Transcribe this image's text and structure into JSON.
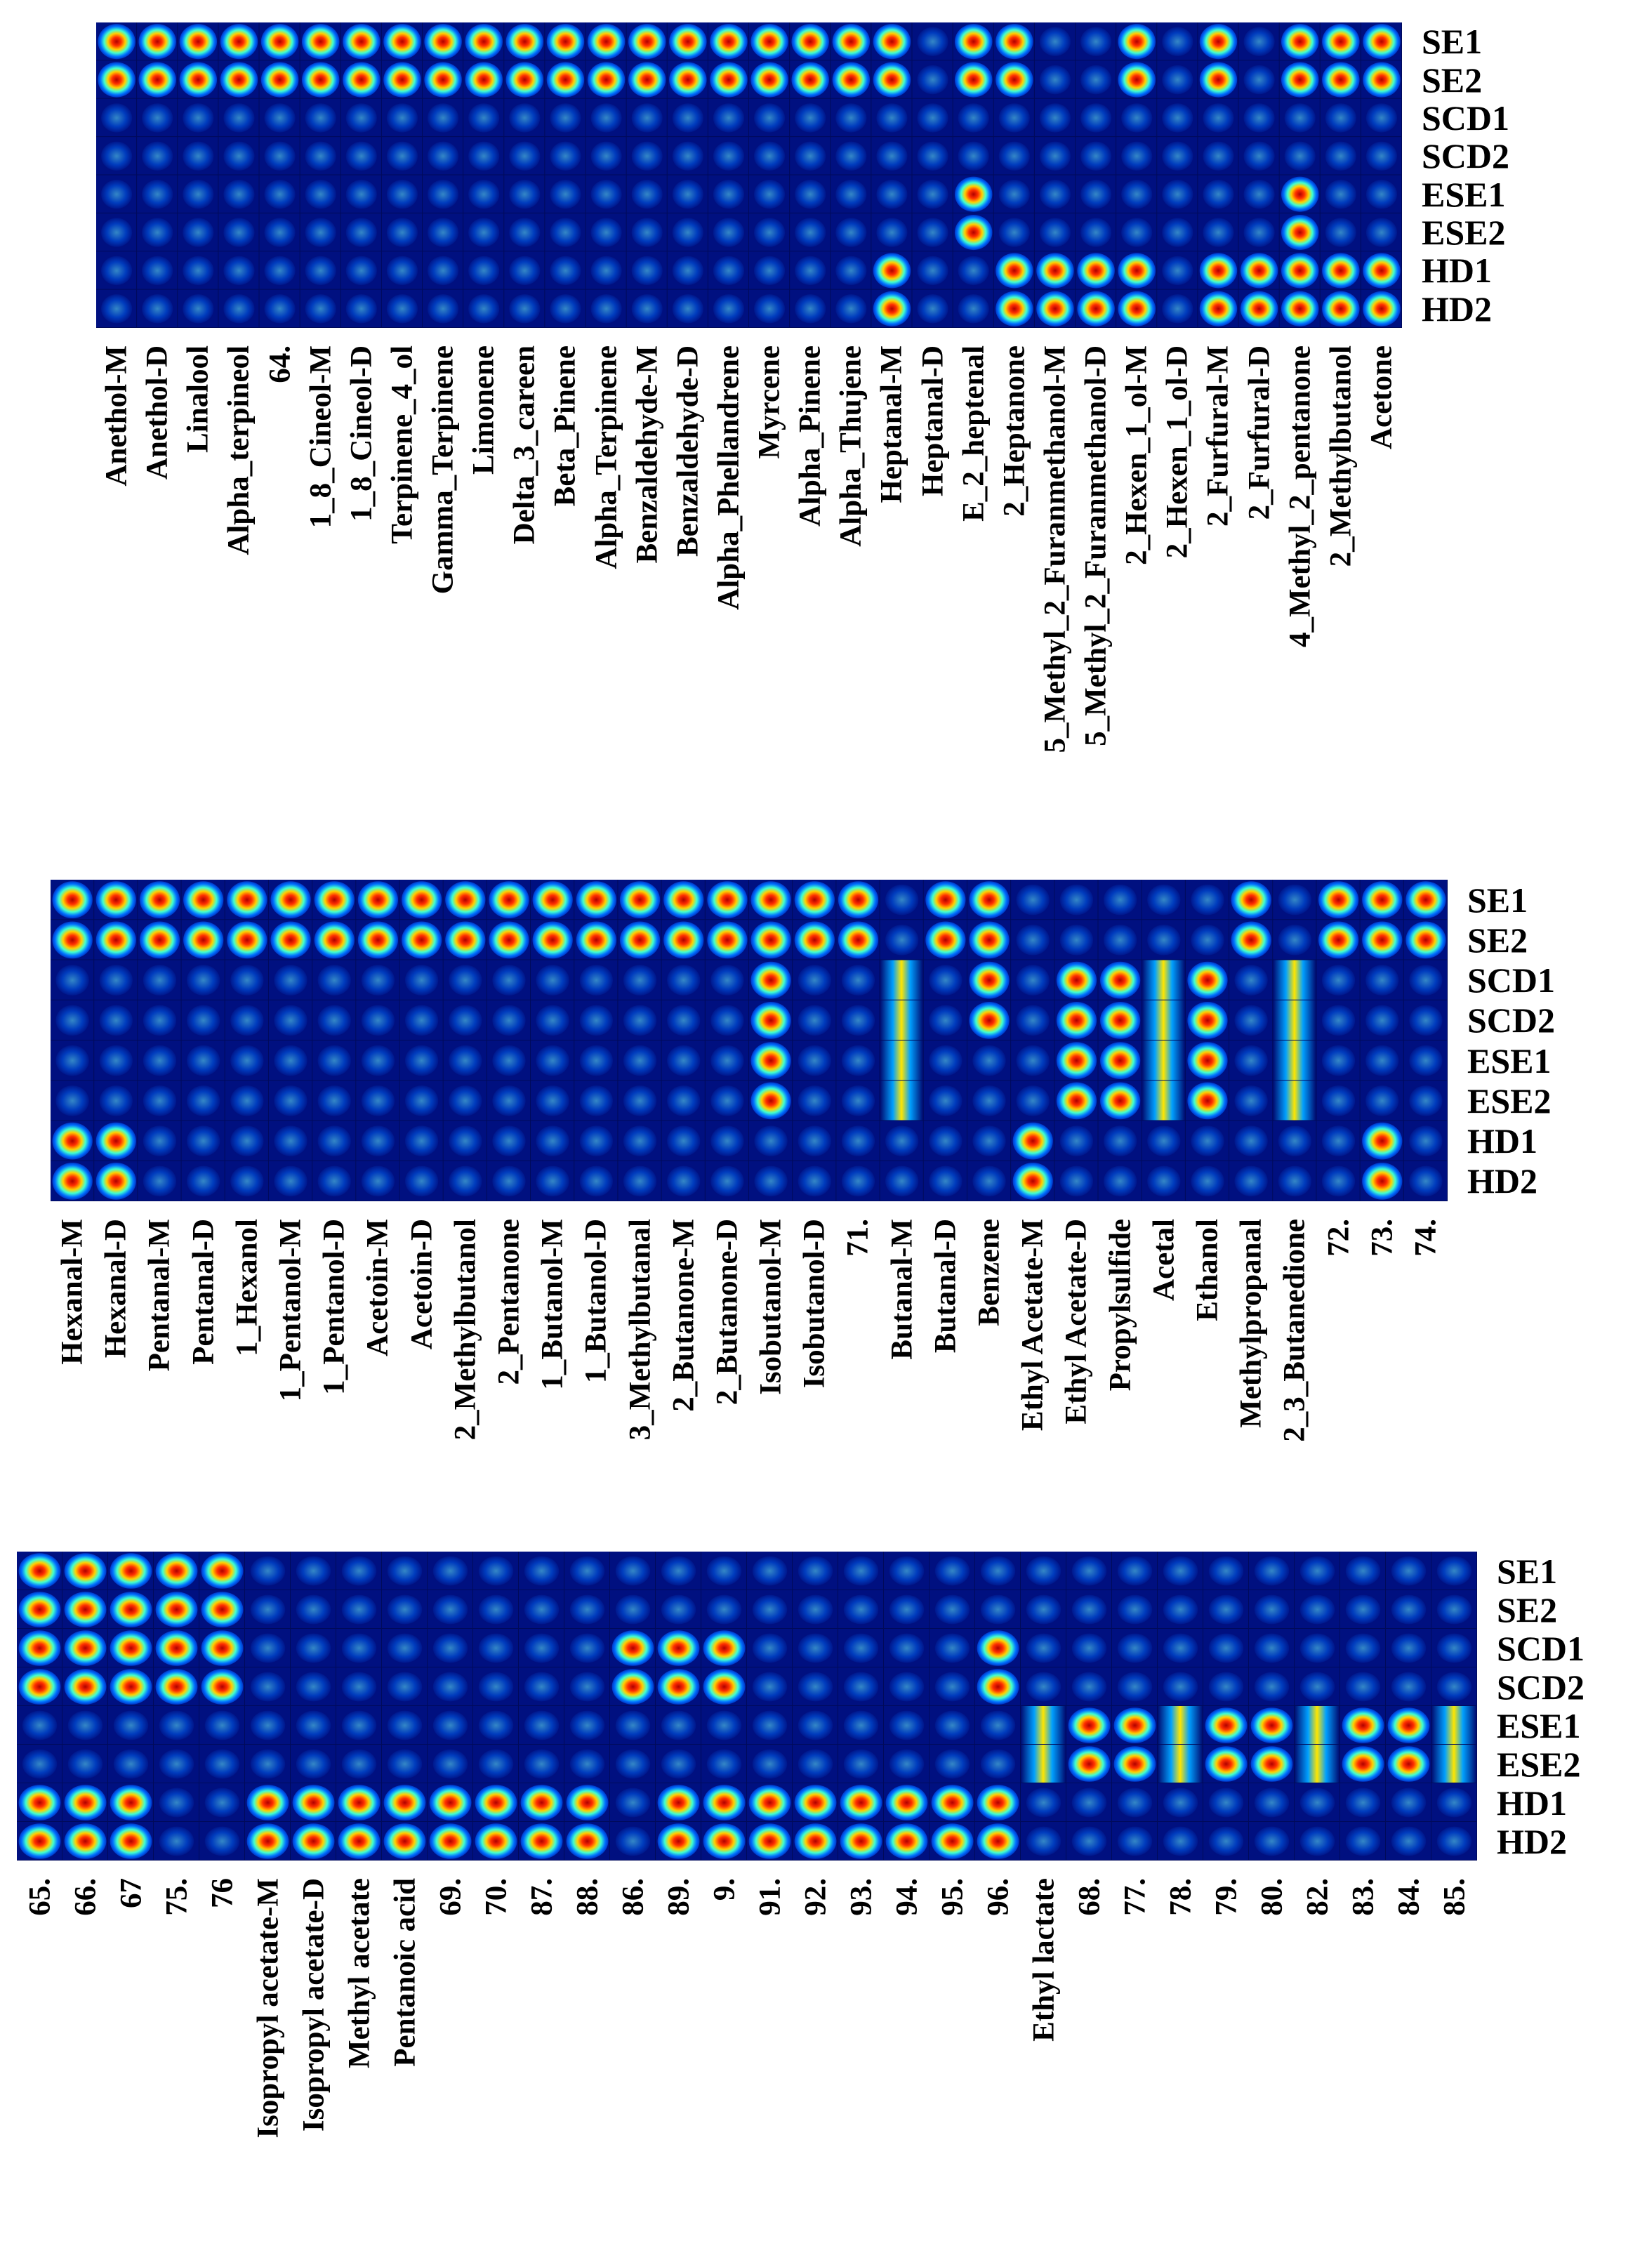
{
  "chart_data": [
    {
      "type": "heatmap",
      "rows": [
        "SE1",
        "SE2",
        "SCD1",
        "SCD2",
        "ESE1",
        "ESE2",
        "HD1",
        "HD2"
      ],
      "columns": [
        "Anethol-M",
        "Anethol-D",
        "Linalool",
        "Alpha_terpineol",
        "64.",
        "1_8_Cineol-M",
        "1_8_Cineol-D",
        "Terpinene_4_ol",
        "Gamma_Terpinene",
        "Limonene",
        "Delta_3_careen",
        "Beta_Pinene",
        "Alpha_Terpinene",
        "Benzaldehyde-M",
        "Benzaldehyde-D",
        "Alpha_Phellandrene",
        "Myrcene",
        "Alpha_Pinene",
        "Alpha_Thujene",
        "Heptanal-M",
        "Heptanal-D",
        "E_2_heptenal",
        "2_Heptanone",
        "5_Methyl_2_Furanmethanol-M",
        "5_Methyl_2_Furanmethanol-D",
        "2_Hexen_1_ol-M",
        "2_Hexen_1_ol-D",
        "2_Furfural-M",
        "2_Furfural-D",
        "4_Methyl_2_pentanone",
        "2_Methylbutanol",
        "Acetone"
      ],
      "profile": [
        "S",
        "S",
        "S",
        "S",
        "S",
        "S",
        "S",
        "S",
        "S",
        "S",
        "S",
        "S",
        "S",
        "S",
        "S",
        "S",
        "S",
        "S",
        "S",
        "SH",
        "N",
        "SE",
        "SH",
        "H",
        "H",
        "SH",
        "N",
        "SH",
        "H",
        "SEH",
        "SH",
        "SH"
      ]
    },
    {
      "type": "heatmap",
      "rows": [
        "SE1",
        "SE2",
        "SCD1",
        "SCD2",
        "ESE1",
        "ESE2",
        "HD1",
        "HD2"
      ],
      "columns": [
        "Hexanal-M",
        "Hexanal-D",
        "Pentanal-M",
        "Pentanal-D",
        "1_Hexanol",
        "1_Pentanol-M",
        "1_Pentanol-D",
        "Acetoin-M",
        "Acetoin-D",
        "2_Methylbutanol",
        "2_Pentanone",
        "1_Butanol-M",
        "1_Butanol-D",
        "3_Methylbutanal",
        "2_Butanone-M",
        "2_Butanone-D",
        "Isobutanol-M",
        "Isobutanol-D",
        "71.",
        "Butanal-M",
        "Butanal-D",
        "Benzene",
        "Ethyl Acetate-M",
        "Ethyl Acetate-D",
        "Propylsulfide",
        "Acetal",
        "Ethanol",
        "Methylpropanal",
        "2_3_Butanedione",
        "72.",
        "73.",
        "74."
      ],
      "profile": [
        "SH",
        "SH",
        "S",
        "S",
        "S",
        "S",
        "S",
        "S",
        "S",
        "S",
        "S",
        "S",
        "S",
        "S",
        "S",
        "S",
        "SCE",
        "S",
        "S",
        "CE",
        "S",
        "SC",
        "H",
        "CE",
        "CE",
        "CE",
        "CE",
        "S",
        "CE",
        "S",
        "SH",
        "S"
      ]
    },
    {
      "type": "heatmap",
      "rows": [
        "SE1",
        "SE2",
        "SCD1",
        "SCD2",
        "ESE1",
        "ESE2",
        "HD1",
        "HD2"
      ],
      "columns": [
        "65.",
        "66.",
        "67",
        "75.",
        "76",
        "Isopropyl acetate-M",
        "Isopropyl acetate-D",
        "Methyl acetate",
        "Pentanoic acid",
        "69.",
        "70.",
        "87.",
        "88.",
        "86.",
        "89.",
        "9.",
        "91.",
        "92.",
        "93.",
        "94.",
        "95.",
        "96.",
        "Ethyl lactate",
        "68.",
        "77.",
        "78.",
        "79.",
        "80.",
        "82.",
        "83.",
        "84.",
        "85."
      ],
      "profile": [
        "SCH",
        "SCH",
        "SCH",
        "SC",
        "SC",
        "H",
        "H",
        "H",
        "H",
        "H",
        "H",
        "H",
        "H",
        "C",
        "CH",
        "CH",
        "H",
        "H",
        "H",
        "H",
        "H",
        "CH",
        "E",
        "E",
        "E",
        "E",
        "E",
        "E",
        "E",
        "E",
        "E",
        "E"
      ]
    }
  ]
}
